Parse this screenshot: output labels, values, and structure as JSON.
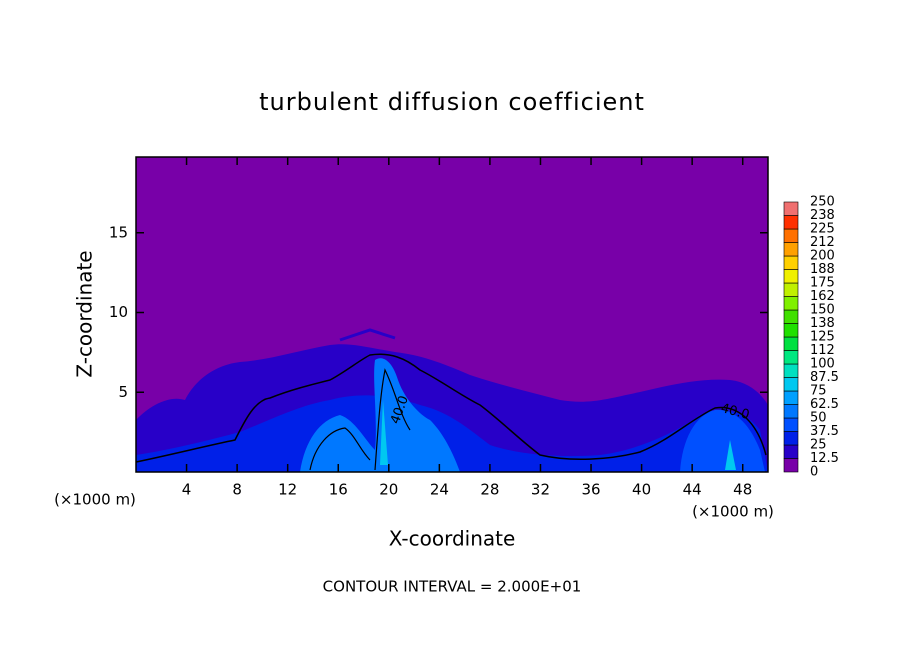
{
  "chart_data": {
    "type": "contour",
    "title": "turbulent diffusion coefficient",
    "x_label": "X-coordinate",
    "y_label": "Z-coordinate",
    "axis_unit_labels": [
      "(×1000 m)",
      "(×1000 m)"
    ],
    "footer": "CONTOUR INTERVAL = 2.000E+01",
    "contour_labels": [
      "40.0",
      "40.0"
    ],
    "xlim": [
      0,
      50
    ],
    "xticks": [
      4,
      8,
      12,
      16,
      20,
      24,
      28,
      32,
      36,
      40,
      44,
      48
    ],
    "ylim": [
      0,
      19.75
    ],
    "yticks": [
      5,
      10,
      15
    ],
    "colorbar": {
      "levels": [
        0,
        12.5,
        25,
        37.5,
        50,
        62.5,
        75,
        87.5,
        100,
        {
          "value": 112.5,
          "label": "112"
        },
        125,
        {
          "value": 137.5,
          "label": "138"
        },
        150,
        {
          "value": 162.5,
          "label": "162"
        },
        175,
        {
          "value": 187.5,
          "label": "188"
        },
        200,
        {
          "value": 212.5,
          "label": "212"
        },
        225,
        {
          "value": 237.5,
          "label": "238"
        },
        250
      ],
      "colors": [
        "#7800a8",
        "#2800c8",
        "#0020e8",
        "#0050ff",
        "#0078ff",
        "#00a0ff",
        "#00c8f0",
        "#00e0c0",
        "#00e880",
        "#00e040",
        "#20e000",
        "#40e000",
        "#80f000",
        "#c0f000",
        "#f0f000",
        "#ffd000",
        "#ffa000",
        "#ff7000",
        "#ff3000",
        "#f07070"
      ]
    }
  }
}
